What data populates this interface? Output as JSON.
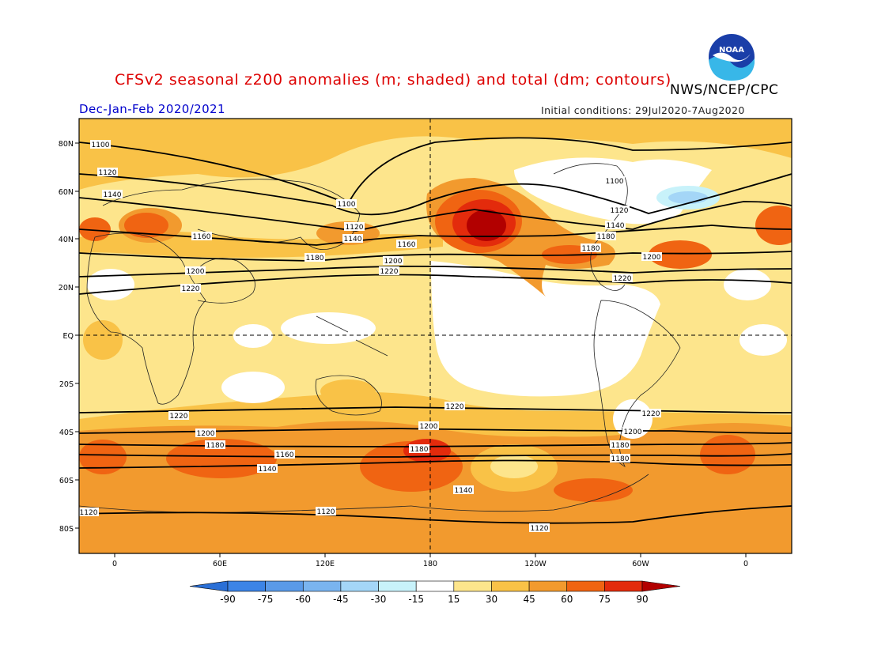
{
  "header": {
    "title": "CFSv2 seasonal z200 anomalies (m; shaded) and total (dm; contours)",
    "agency": "NWS/NCEP/CPC",
    "season": "Dec-Jan-Feb 2020/2021",
    "initial_conditions": "Initial conditions: 29Jul2020-7Aug2020",
    "logo_text": "NOAA"
  },
  "axes": {
    "lat_labels": [
      "80N",
      "60N",
      "40N",
      "20N",
      "EQ",
      "20S",
      "40S",
      "60S",
      "80S"
    ],
    "lon_labels": [
      "0",
      "60E",
      "120E",
      "180",
      "120W",
      "60W",
      "0"
    ]
  },
  "colorbar": {
    "ticks": [
      "-90",
      "-75",
      "-60",
      "-45",
      "-30",
      "-15",
      "15",
      "30",
      "45",
      "60",
      "75",
      "90"
    ],
    "colors": [
      "#2a6fd6",
      "#3c84e6",
      "#5a9ae8",
      "#7ab4ef",
      "#a4d6f7",
      "#c8f2fa",
      "#ffffff",
      "#fde58c",
      "#f9c247",
      "#f29a2e",
      "#f06412",
      "#e32b0c",
      "#b20000"
    ]
  },
  "contour_labels": [
    {
      "id": "c1",
      "text": "1100"
    },
    {
      "id": "c2",
      "text": "1120"
    },
    {
      "id": "c3",
      "text": "1140"
    },
    {
      "id": "c4",
      "text": "1160"
    },
    {
      "id": "c5",
      "text": "1100"
    },
    {
      "id": "c6",
      "text": "1120"
    },
    {
      "id": "c7",
      "text": "1140"
    },
    {
      "id": "c8",
      "text": "1160"
    },
    {
      "id": "c9",
      "text": "1180"
    },
    {
      "id": "c10",
      "text": "1200"
    },
    {
      "id": "c11",
      "text": "1220"
    },
    {
      "id": "c12",
      "text": "1180"
    },
    {
      "id": "c13",
      "text": "1200"
    },
    {
      "id": "c14",
      "text": "1220"
    },
    {
      "id": "c15",
      "text": "1100"
    },
    {
      "id": "c16",
      "text": "1120"
    },
    {
      "id": "c17",
      "text": "1140"
    },
    {
      "id": "c18",
      "text": "1180"
    },
    {
      "id": "c19",
      "text": "1200"
    },
    {
      "id": "c20",
      "text": "1220"
    },
    {
      "id": "c21",
      "text": "1160"
    },
    {
      "id": "c22",
      "text": "1180"
    },
    {
      "id": "c23",
      "text": "1220"
    },
    {
      "id": "c24",
      "text": "1200"
    },
    {
      "id": "c25",
      "text": "1180"
    },
    {
      "id": "c26",
      "text": "1160"
    },
    {
      "id": "c27",
      "text": "1140"
    },
    {
      "id": "c28",
      "text": "1220"
    },
    {
      "id": "c29",
      "text": "1200"
    },
    {
      "id": "c30",
      "text": "1180"
    },
    {
      "id": "c31",
      "text": "1140"
    },
    {
      "id": "c32",
      "text": "1220"
    },
    {
      "id": "c33",
      "text": "1200"
    },
    {
      "id": "c34",
      "text": "1180"
    },
    {
      "id": "c35",
      "text": "1180"
    },
    {
      "id": "c36",
      "text": "1120"
    },
    {
      "id": "c37",
      "text": "1120"
    },
    {
      "id": "c38",
      "text": "1120"
    }
  ]
}
